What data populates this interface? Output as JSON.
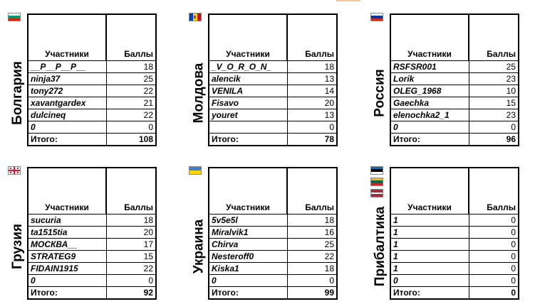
{
  "columns": {
    "name": "Участники",
    "points": "Баллы"
  },
  "total_label": "Итого:",
  "groups": [
    {
      "country": "Болгария",
      "flag": "bulgaria-flag",
      "rows": [
        {
          "name": "__P__P__P__",
          "points": "18"
        },
        {
          "name": "ninja37",
          "points": "25"
        },
        {
          "name": "tony272",
          "points": "22"
        },
        {
          "name": "xavantgardex",
          "points": "21"
        },
        {
          "name": "dulcineq",
          "points": "22"
        },
        {
          "name": "0",
          "points": "0"
        }
      ],
      "total": "108"
    },
    {
      "country": "Молдова",
      "flag": "moldova-flag",
      "rows": [
        {
          "name": "_V_O_R_O_N_",
          "points": "18"
        },
        {
          "name": "alencik",
          "points": "13"
        },
        {
          "name": "VENILA",
          "points": "14"
        },
        {
          "name": "Fisavo",
          "points": "20"
        },
        {
          "name": "youret",
          "points": "13"
        },
        {
          "name": "",
          "points": "0"
        }
      ],
      "total": "78"
    },
    {
      "country": "Россия",
      "flag": "russia-flag",
      "rows": [
        {
          "name": "RSFSR001",
          "points": "25"
        },
        {
          "name": "Lorik",
          "points": "23"
        },
        {
          "name": "OLEG_1968",
          "points": "10"
        },
        {
          "name": "Gaechka",
          "points": "15"
        },
        {
          "name": "elenochka2_1",
          "points": "23"
        },
        {
          "name": "0",
          "points": "0"
        }
      ],
      "total": "96"
    },
    {
      "country": "Грузия",
      "flag": "georgia-flag",
      "rows": [
        {
          "name": "sucuria",
          "points": "18"
        },
        {
          "name": "ta1515tia",
          "points": "20"
        },
        {
          "name": "МОСКВА__",
          "points": "17"
        },
        {
          "name": "STRATEG9",
          "points": "15"
        },
        {
          "name": "FIDAIN1915",
          "points": "22"
        },
        {
          "name": "0",
          "points": "0"
        }
      ],
      "total": "92"
    },
    {
      "country": "Украина",
      "flag": "ukraine-flag",
      "rows": [
        {
          "name": "5v5e5l",
          "points": "18"
        },
        {
          "name": "Miralvik1",
          "points": "16"
        },
        {
          "name": "Chirva",
          "points": "25"
        },
        {
          "name": "Nesteroff0",
          "points": "22"
        },
        {
          "name": "Kiska1",
          "points": "18"
        },
        {
          "name": "0",
          "points": "0"
        }
      ],
      "total": "99"
    },
    {
      "country": "Прибалтика",
      "flag": "baltic-flags",
      "rows": [
        {
          "name": "1",
          "points": "0"
        },
        {
          "name": "1",
          "points": "0"
        },
        {
          "name": "1",
          "points": "0"
        },
        {
          "name": "1",
          "points": "0"
        },
        {
          "name": "1",
          "points": "0"
        },
        {
          "name": "0",
          "points": "0"
        }
      ],
      "total": "0"
    }
  ]
}
